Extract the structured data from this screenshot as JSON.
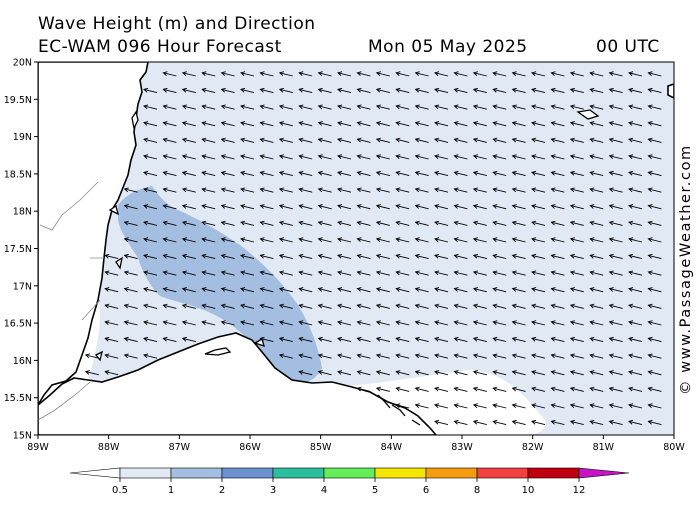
{
  "header": {
    "title_line1": "Wave Height (m) and Direction",
    "model_line": "EC-WAM 096 Hour Forecast",
    "date": "Mon 05 May 2025",
    "time": "00 UTC"
  },
  "watermark": "© www.PassageWeather.com",
  "map": {
    "lat_labels": [
      "20N",
      "19.5N",
      "19N",
      "18.5N",
      "18N",
      "17.5N",
      "17N",
      "16.5N",
      "16N",
      "15.5N",
      "15N"
    ],
    "lon_labels": [
      "89W",
      "88W",
      "87W",
      "86W",
      "85W",
      "84W",
      "83W",
      "82W",
      "81W",
      "80W"
    ],
    "wave_direction": "from east-southeast",
    "colors": {
      "band_0_5_1": "#e1e9f5",
      "band_1_2": "#a3bee0",
      "land": "#ffffff",
      "coast": "#000000"
    }
  },
  "legend": {
    "labels": [
      "0.5",
      "1",
      "2",
      "3",
      "4",
      "5",
      "6",
      "8",
      "10",
      "12"
    ],
    "colors": [
      "#e1e9f5",
      "#a3bee0",
      "#6b92cf",
      "#2bbf9e",
      "#63ee5a",
      "#f5e600",
      "#f59c10",
      "#f04040",
      "#c00010",
      "#c414c4"
    ]
  }
}
